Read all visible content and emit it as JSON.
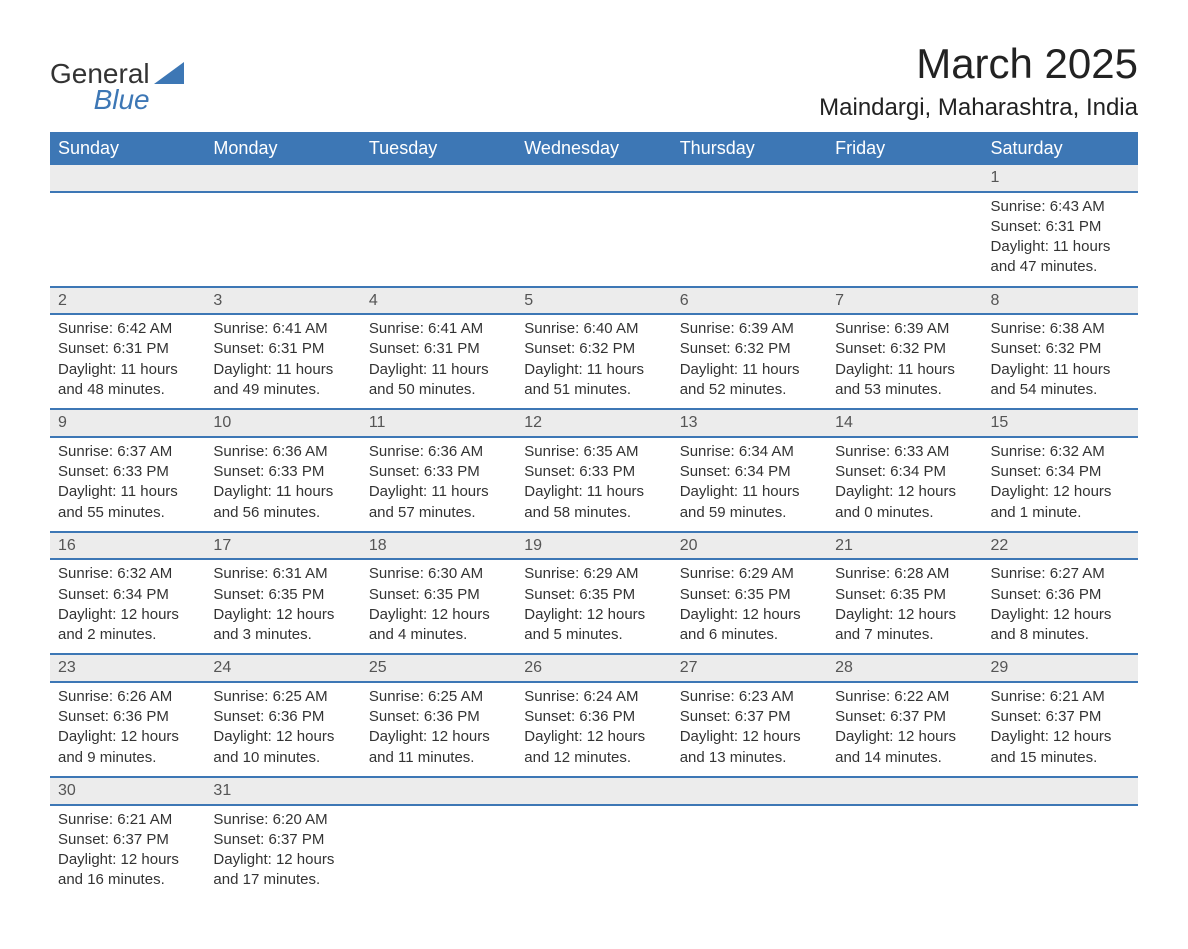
{
  "brand": {
    "name1": "General",
    "name2": "Blue",
    "icon_color": "#3d77b5"
  },
  "title": "March 2025",
  "location": "Maindargi, Maharashtra, India",
  "colors": {
    "header_bg": "#3d77b5",
    "header_text": "#ffffff",
    "daynum_bg": "#ececec",
    "border": "#3d77b5",
    "text": "#333333"
  },
  "day_headers": [
    "Sunday",
    "Monday",
    "Tuesday",
    "Wednesday",
    "Thursday",
    "Friday",
    "Saturday"
  ],
  "weeks": [
    [
      null,
      null,
      null,
      null,
      null,
      null,
      {
        "n": "1",
        "sr": "Sunrise: 6:43 AM",
        "ss": "Sunset: 6:31 PM",
        "d1": "Daylight: 11 hours",
        "d2": "and 47 minutes."
      }
    ],
    [
      {
        "n": "2",
        "sr": "Sunrise: 6:42 AM",
        "ss": "Sunset: 6:31 PM",
        "d1": "Daylight: 11 hours",
        "d2": "and 48 minutes."
      },
      {
        "n": "3",
        "sr": "Sunrise: 6:41 AM",
        "ss": "Sunset: 6:31 PM",
        "d1": "Daylight: 11 hours",
        "d2": "and 49 minutes."
      },
      {
        "n": "4",
        "sr": "Sunrise: 6:41 AM",
        "ss": "Sunset: 6:31 PM",
        "d1": "Daylight: 11 hours",
        "d2": "and 50 minutes."
      },
      {
        "n": "5",
        "sr": "Sunrise: 6:40 AM",
        "ss": "Sunset: 6:32 PM",
        "d1": "Daylight: 11 hours",
        "d2": "and 51 minutes."
      },
      {
        "n": "6",
        "sr": "Sunrise: 6:39 AM",
        "ss": "Sunset: 6:32 PM",
        "d1": "Daylight: 11 hours",
        "d2": "and 52 minutes."
      },
      {
        "n": "7",
        "sr": "Sunrise: 6:39 AM",
        "ss": "Sunset: 6:32 PM",
        "d1": "Daylight: 11 hours",
        "d2": "and 53 minutes."
      },
      {
        "n": "8",
        "sr": "Sunrise: 6:38 AM",
        "ss": "Sunset: 6:32 PM",
        "d1": "Daylight: 11 hours",
        "d2": "and 54 minutes."
      }
    ],
    [
      {
        "n": "9",
        "sr": "Sunrise: 6:37 AM",
        "ss": "Sunset: 6:33 PM",
        "d1": "Daylight: 11 hours",
        "d2": "and 55 minutes."
      },
      {
        "n": "10",
        "sr": "Sunrise: 6:36 AM",
        "ss": "Sunset: 6:33 PM",
        "d1": "Daylight: 11 hours",
        "d2": "and 56 minutes."
      },
      {
        "n": "11",
        "sr": "Sunrise: 6:36 AM",
        "ss": "Sunset: 6:33 PM",
        "d1": "Daylight: 11 hours",
        "d2": "and 57 minutes."
      },
      {
        "n": "12",
        "sr": "Sunrise: 6:35 AM",
        "ss": "Sunset: 6:33 PM",
        "d1": "Daylight: 11 hours",
        "d2": "and 58 minutes."
      },
      {
        "n": "13",
        "sr": "Sunrise: 6:34 AM",
        "ss": "Sunset: 6:34 PM",
        "d1": "Daylight: 11 hours",
        "d2": "and 59 minutes."
      },
      {
        "n": "14",
        "sr": "Sunrise: 6:33 AM",
        "ss": "Sunset: 6:34 PM",
        "d1": "Daylight: 12 hours",
        "d2": "and 0 minutes."
      },
      {
        "n": "15",
        "sr": "Sunrise: 6:32 AM",
        "ss": "Sunset: 6:34 PM",
        "d1": "Daylight: 12 hours",
        "d2": "and 1 minute."
      }
    ],
    [
      {
        "n": "16",
        "sr": "Sunrise: 6:32 AM",
        "ss": "Sunset: 6:34 PM",
        "d1": "Daylight: 12 hours",
        "d2": "and 2 minutes."
      },
      {
        "n": "17",
        "sr": "Sunrise: 6:31 AM",
        "ss": "Sunset: 6:35 PM",
        "d1": "Daylight: 12 hours",
        "d2": "and 3 minutes."
      },
      {
        "n": "18",
        "sr": "Sunrise: 6:30 AM",
        "ss": "Sunset: 6:35 PM",
        "d1": "Daylight: 12 hours",
        "d2": "and 4 minutes."
      },
      {
        "n": "19",
        "sr": "Sunrise: 6:29 AM",
        "ss": "Sunset: 6:35 PM",
        "d1": "Daylight: 12 hours",
        "d2": "and 5 minutes."
      },
      {
        "n": "20",
        "sr": "Sunrise: 6:29 AM",
        "ss": "Sunset: 6:35 PM",
        "d1": "Daylight: 12 hours",
        "d2": "and 6 minutes."
      },
      {
        "n": "21",
        "sr": "Sunrise: 6:28 AM",
        "ss": "Sunset: 6:35 PM",
        "d1": "Daylight: 12 hours",
        "d2": "and 7 minutes."
      },
      {
        "n": "22",
        "sr": "Sunrise: 6:27 AM",
        "ss": "Sunset: 6:36 PM",
        "d1": "Daylight: 12 hours",
        "d2": "and 8 minutes."
      }
    ],
    [
      {
        "n": "23",
        "sr": "Sunrise: 6:26 AM",
        "ss": "Sunset: 6:36 PM",
        "d1": "Daylight: 12 hours",
        "d2": "and 9 minutes."
      },
      {
        "n": "24",
        "sr": "Sunrise: 6:25 AM",
        "ss": "Sunset: 6:36 PM",
        "d1": "Daylight: 12 hours",
        "d2": "and 10 minutes."
      },
      {
        "n": "25",
        "sr": "Sunrise: 6:25 AM",
        "ss": "Sunset: 6:36 PM",
        "d1": "Daylight: 12 hours",
        "d2": "and 11 minutes."
      },
      {
        "n": "26",
        "sr": "Sunrise: 6:24 AM",
        "ss": "Sunset: 6:36 PM",
        "d1": "Daylight: 12 hours",
        "d2": "and 12 minutes."
      },
      {
        "n": "27",
        "sr": "Sunrise: 6:23 AM",
        "ss": "Sunset: 6:37 PM",
        "d1": "Daylight: 12 hours",
        "d2": "and 13 minutes."
      },
      {
        "n": "28",
        "sr": "Sunrise: 6:22 AM",
        "ss": "Sunset: 6:37 PM",
        "d1": "Daylight: 12 hours",
        "d2": "and 14 minutes."
      },
      {
        "n": "29",
        "sr": "Sunrise: 6:21 AM",
        "ss": "Sunset: 6:37 PM",
        "d1": "Daylight: 12 hours",
        "d2": "and 15 minutes."
      }
    ],
    [
      {
        "n": "30",
        "sr": "Sunrise: 6:21 AM",
        "ss": "Sunset: 6:37 PM",
        "d1": "Daylight: 12 hours",
        "d2": "and 16 minutes."
      },
      {
        "n": "31",
        "sr": "Sunrise: 6:20 AM",
        "ss": "Sunset: 6:37 PM",
        "d1": "Daylight: 12 hours",
        "d2": "and 17 minutes."
      },
      null,
      null,
      null,
      null,
      null
    ]
  ]
}
